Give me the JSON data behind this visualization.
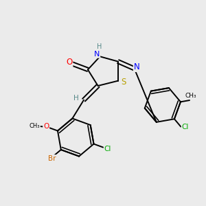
{
  "bg_color": "#ebebeb",
  "bond_color": "#000000",
  "atom_colors": {
    "O": "#ff0000",
    "N": "#0000ff",
    "S": "#b8a000",
    "Br": "#cc6600",
    "Cl": "#00aa00",
    "C": "#000000",
    "H": "#558888"
  }
}
